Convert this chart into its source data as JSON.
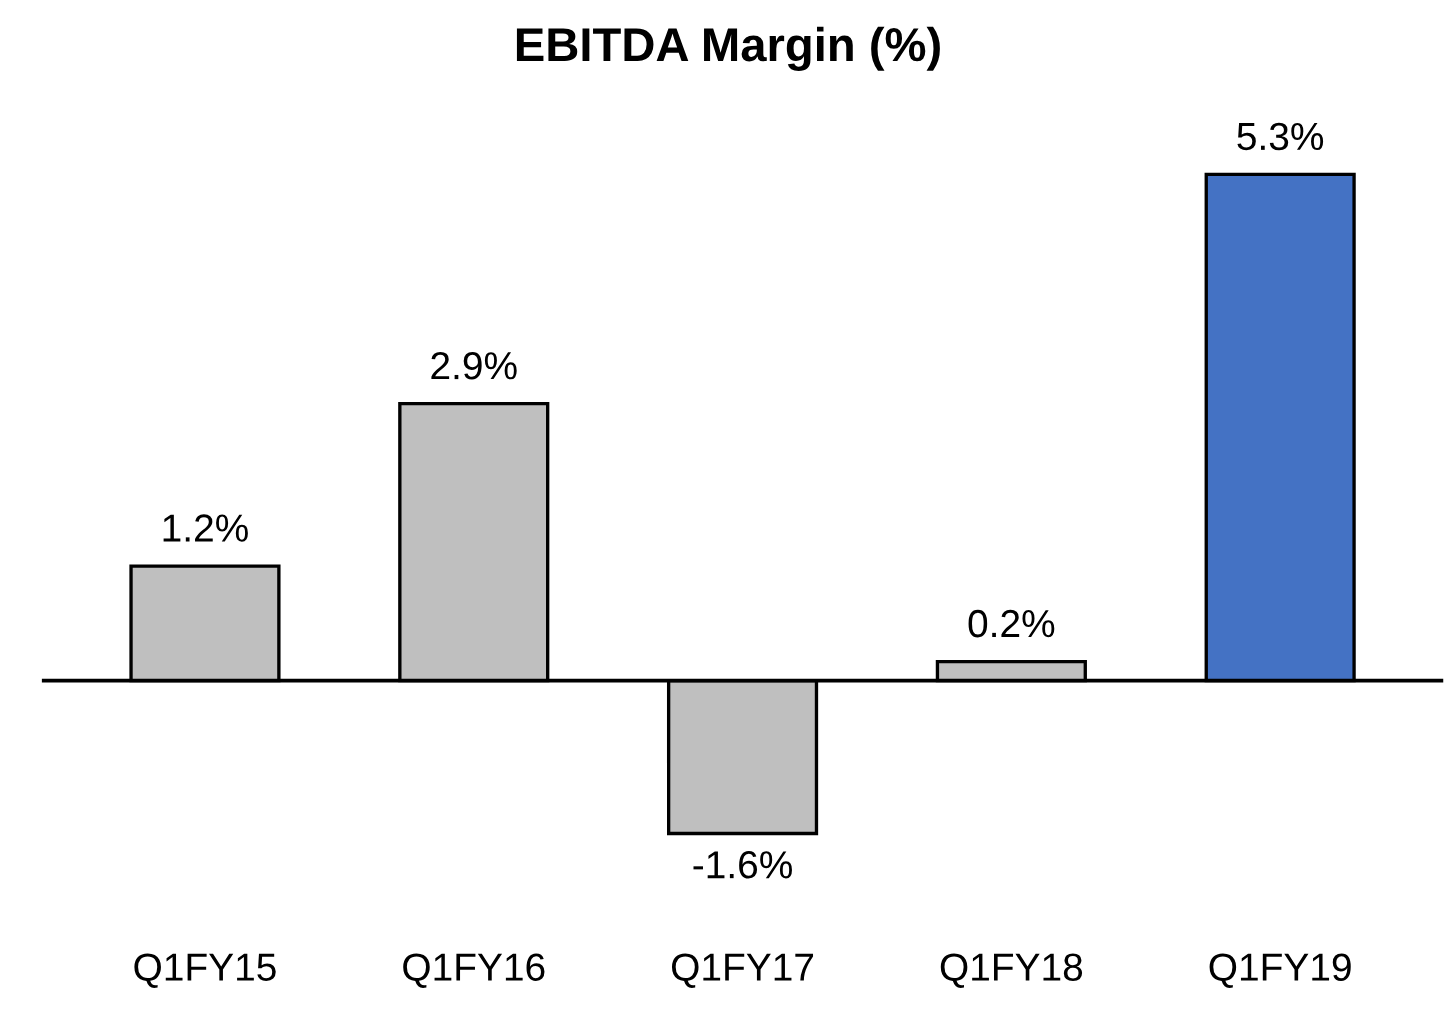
{
  "chart_data": {
    "type": "bar",
    "title": "EBITDA Margin (%)",
    "categories": [
      "Q1FY15",
      "Q1FY16",
      "Q1FY17",
      "Q1FY18",
      "Q1FY19"
    ],
    "values": [
      1.2,
      2.9,
      -1.6,
      0.2,
      5.3
    ],
    "colors": [
      "#bfbfbf",
      "#bfbfbf",
      "#bfbfbf",
      "#bfbfbf",
      "#4472c4"
    ],
    "value_labels": [
      "1.2%",
      "2.9%",
      "-1.6%",
      "0.2%",
      "5.3%"
    ]
  }
}
